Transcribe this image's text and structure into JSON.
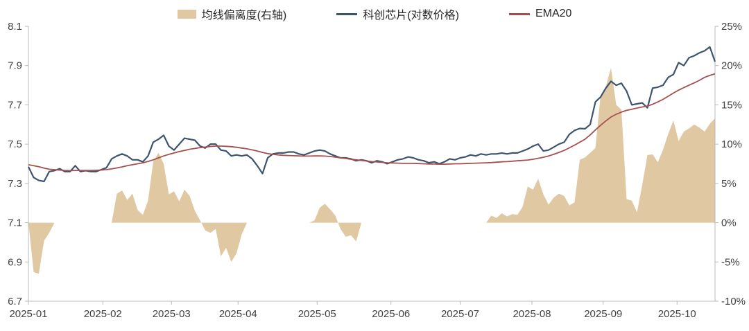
{
  "chart_data": {
    "type": "combo",
    "title": "",
    "legend": [
      {
        "label": "均线偏离度(右轴)",
        "type": "area",
        "axis": "right",
        "color": "#e0c9a2"
      },
      {
        "label": "科创芯片(对数价格)",
        "type": "line",
        "axis": "left",
        "color": "#3d536e"
      },
      {
        "label": "EMA20",
        "type": "line",
        "axis": "left",
        "color": "#a5504f"
      }
    ],
    "x_axis": {
      "tick_labels": [
        "2025-01",
        "2025-02",
        "2025-03",
        "2025-04",
        "2025-05",
        "2025-06",
        "2025-07",
        "2025-08",
        "2025-09",
        "2025-10"
      ],
      "tick_index_positions": [
        0,
        14.3,
        27.5,
        40.3,
        55.5,
        69.7,
        83.0,
        96.8,
        110.5,
        124.7
      ],
      "n_points": 133
    },
    "y_left": {
      "min": 6.7,
      "max": 8.1,
      "ticks": [
        8.1,
        7.9,
        7.7,
        7.5,
        7.3,
        7.1,
        6.9,
        6.7
      ]
    },
    "y_right": {
      "min": -10,
      "max": 25,
      "tick_labels": [
        "25%",
        "20%",
        "15%",
        "10%",
        "5%",
        "0%",
        "-5%",
        "-10%"
      ],
      "tick_values": [
        25,
        20,
        15,
        10,
        5,
        0,
        -5,
        -10
      ]
    },
    "colors": {
      "price": "#3d536e",
      "ema": "#a5504f",
      "area": "#e0c9a2",
      "axis": "#b9b9b9",
      "label": "#404040"
    },
    "series": {
      "price_log": [
        7.385,
        7.33,
        7.315,
        7.31,
        7.36,
        7.365,
        7.375,
        7.36,
        7.36,
        7.39,
        7.36,
        7.365,
        7.36,
        7.36,
        7.37,
        7.38,
        7.425,
        7.44,
        7.45,
        7.44,
        7.42,
        7.42,
        7.41,
        7.44,
        7.51,
        7.525,
        7.545,
        7.49,
        7.47,
        7.5,
        7.53,
        7.525,
        7.52,
        7.49,
        7.48,
        7.5,
        7.5,
        7.47,
        7.465,
        7.44,
        7.445,
        7.44,
        7.445,
        7.425,
        7.39,
        7.35,
        7.43,
        7.45,
        7.455,
        7.455,
        7.46,
        7.46,
        7.45,
        7.445,
        7.455,
        7.465,
        7.47,
        7.465,
        7.45,
        7.44,
        7.43,
        7.43,
        7.425,
        7.415,
        7.42,
        7.415,
        7.405,
        7.415,
        7.41,
        7.4,
        7.41,
        7.42,
        7.425,
        7.435,
        7.43,
        7.42,
        7.415,
        7.405,
        7.41,
        7.4,
        7.41,
        7.425,
        7.42,
        7.43,
        7.435,
        7.445,
        7.44,
        7.45,
        7.445,
        7.45,
        7.45,
        7.455,
        7.45,
        7.455,
        7.455,
        7.465,
        7.475,
        7.49,
        7.5,
        7.465,
        7.47,
        7.485,
        7.5,
        7.51,
        7.55,
        7.57,
        7.58,
        7.578,
        7.6,
        7.715,
        7.74,
        7.785,
        7.82,
        7.8,
        7.81,
        7.77,
        7.7,
        7.705,
        7.71,
        7.685,
        7.785,
        7.79,
        7.8,
        7.84,
        7.855,
        7.915,
        7.9,
        7.94,
        7.95,
        7.965,
        7.975,
        7.995,
        7.92
      ],
      "ema20_log": [
        7.395,
        7.39,
        7.385,
        7.378,
        7.372,
        7.37,
        7.368,
        7.366,
        7.365,
        7.366,
        7.366,
        7.366,
        7.366,
        7.367,
        7.368,
        7.37,
        7.374,
        7.379,
        7.384,
        7.39,
        7.395,
        7.4,
        7.405,
        7.412,
        7.42,
        7.43,
        7.44,
        7.448,
        7.455,
        7.462,
        7.468,
        7.474,
        7.478,
        7.482,
        7.485,
        7.488,
        7.49,
        7.49,
        7.489,
        7.487,
        7.484,
        7.48,
        7.476,
        7.471,
        7.465,
        7.458,
        7.452,
        7.448,
        7.445,
        7.443,
        7.442,
        7.441,
        7.44,
        7.439,
        7.439,
        7.44,
        7.44,
        7.439,
        7.437,
        7.434,
        7.43,
        7.427,
        7.423,
        7.42,
        7.417,
        7.414,
        7.411,
        7.409,
        7.407,
        7.405,
        7.404,
        7.403,
        7.402,
        7.402,
        7.402,
        7.401,
        7.4,
        7.399,
        7.399,
        7.398,
        7.398,
        7.399,
        7.4,
        7.4,
        7.401,
        7.402,
        7.403,
        7.404,
        7.405,
        7.406,
        7.408,
        7.41,
        7.411,
        7.413,
        7.415,
        7.417,
        7.419,
        7.423,
        7.428,
        7.433,
        7.44,
        7.448,
        7.458,
        7.468,
        7.481,
        7.495,
        7.51,
        7.525,
        7.547,
        7.572,
        7.596,
        7.618,
        7.638,
        7.652,
        7.663,
        7.672,
        7.678,
        7.684,
        7.689,
        7.694,
        7.703,
        7.715,
        7.728,
        7.744,
        7.76,
        7.775,
        7.788,
        7.8,
        7.812,
        7.825,
        7.84,
        7.85,
        7.858
      ],
      "deviation_pct": [
        0,
        -6.3,
        -6.5,
        -2.3,
        -1.3,
        0,
        0,
        0,
        0,
        0,
        0,
        0,
        0,
        0,
        0,
        0,
        0,
        3.7,
        4.1,
        2.9,
        3.7,
        1.6,
        1.0,
        2.8,
        7.8,
        8.9,
        7.5,
        3.6,
        4.0,
        2.7,
        4.2,
        3.4,
        1.5,
        0.3,
        -1.0,
        -1.3,
        -0.8,
        -4.3,
        -3.2,
        -5.0,
        -3.9,
        -1.5,
        0,
        0,
        0,
        0,
        0,
        0,
        0,
        0,
        0,
        0,
        0,
        0,
        0,
        0.3,
        1.9,
        2.4,
        1.7,
        0.9,
        -0.8,
        -1.8,
        -1.6,
        -2.4,
        0,
        0,
        0,
        0,
        0,
        0,
        0,
        0,
        0,
        0,
        0,
        0,
        0,
        0,
        0,
        0,
        0,
        0,
        0,
        0,
        0,
        0,
        0,
        0,
        0,
        0.9,
        0.6,
        1.2,
        0.8,
        1.1,
        1.0,
        2.0,
        4.6,
        4.2,
        5.6,
        3.6,
        2.3,
        3.2,
        3.7,
        3.4,
        2.2,
        2.6,
        8.0,
        8.3,
        8.9,
        9.5,
        16.2,
        17.3,
        19.7,
        15.0,
        14.4,
        3.0,
        2.8,
        1.3,
        4.8,
        8.6,
        8.7,
        7.7,
        9.3,
        11.3,
        13.0,
        10.4,
        11.6,
        12.0,
        12.5,
        12.1,
        11.6,
        12.6,
        13.3
      ]
    }
  }
}
